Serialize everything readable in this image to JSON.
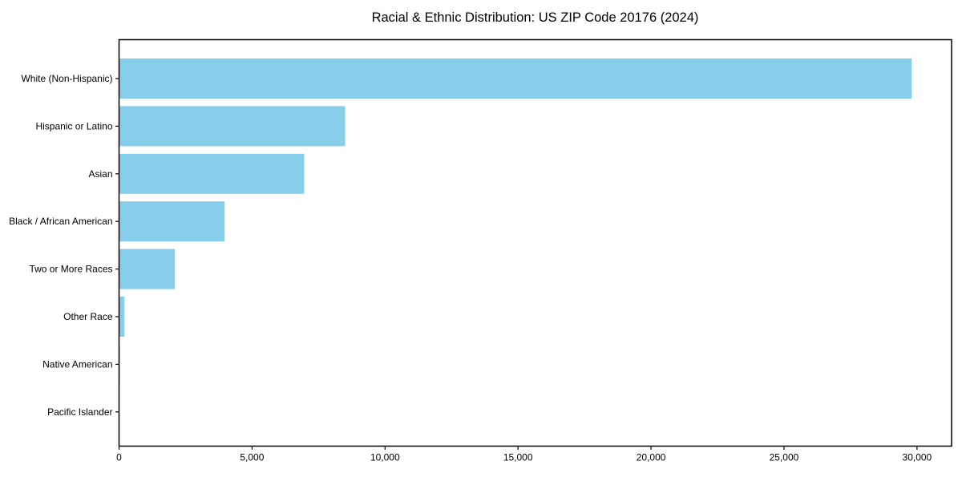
{
  "chart_data": {
    "type": "bar",
    "orientation": "horizontal",
    "title": "Racial & Ethnic Distribution: US ZIP Code 20176 (2024)",
    "categories": [
      "White (Non-Hispanic)",
      "Hispanic or Latino",
      "Asian",
      "Black / African American",
      "Two or More Races",
      "Other Race",
      "Native American",
      "Pacific Islander"
    ],
    "values": [
      29800,
      8500,
      6960,
      3970,
      2100,
      200,
      30,
      10
    ],
    "xlabel": "",
    "ylabel": "",
    "xlim": [
      0,
      31300
    ],
    "xticks": [
      0,
      5000,
      10000,
      15000,
      20000,
      25000,
      30000
    ],
    "xtick_labels": [
      "0",
      "5,000",
      "10,000",
      "15,000",
      "20,000",
      "25,000",
      "30,000"
    ],
    "bar_color": "#87CEEB",
    "axis_color": "#000000",
    "text_color": "#000000",
    "background_color": "#ffffff",
    "grid": false,
    "legend": null
  }
}
